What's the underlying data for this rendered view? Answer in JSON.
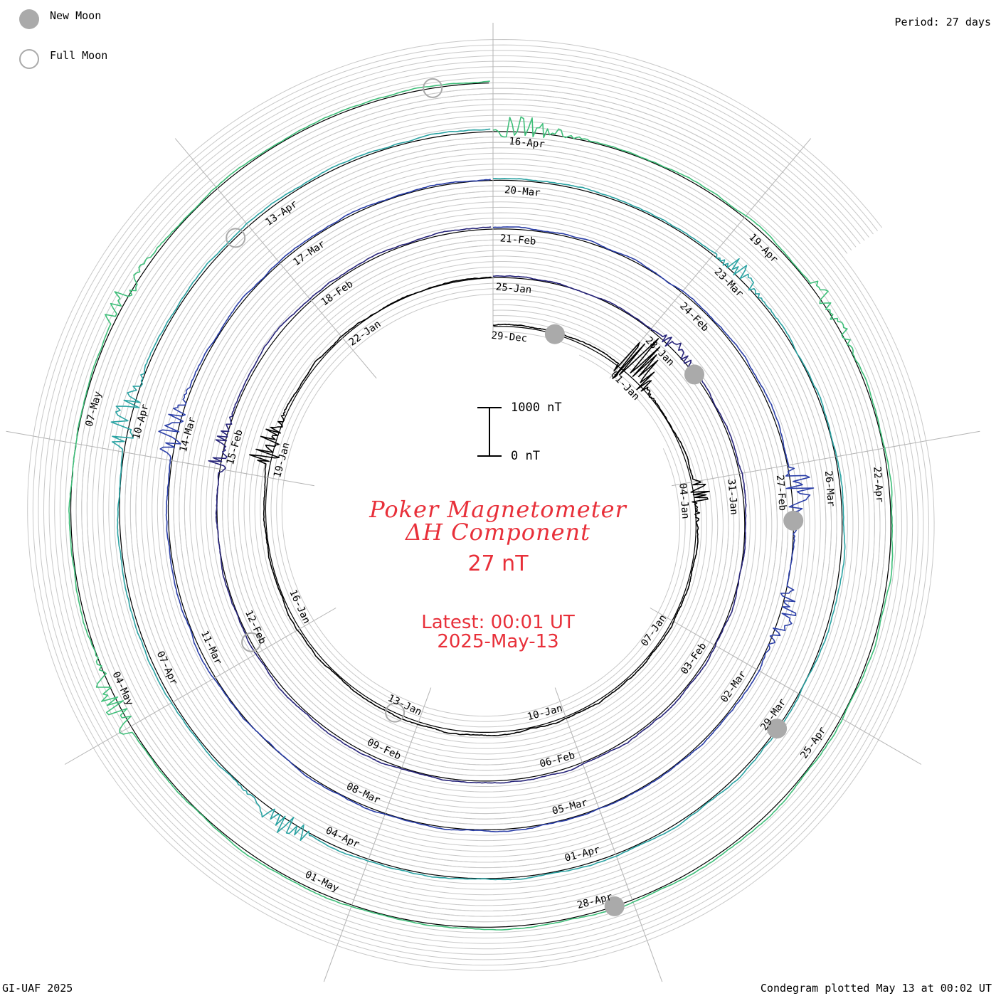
{
  "legend": {
    "new_moon_label": "New Moon",
    "full_moon_label": "Full Moon",
    "moon_color": "#aaaaaa"
  },
  "header": {
    "period_label": "Period: 27 days"
  },
  "footer": {
    "credit": "GI-UAF 2025",
    "plotted": "Condegram plotted May 13 at 00:02 UT"
  },
  "center": {
    "title_line1": "Poker Magnetometer",
    "title_line2": "ΔH Component",
    "scale_label": "27 nT",
    "latest_time": "Latest: 00:01 UT",
    "latest_date": "2025-May-13",
    "text_color": "#e8303a"
  },
  "scale_bar": {
    "top_label": "1000 nT",
    "bottom_label": "0 nT",
    "top_value_nT": 1000,
    "bottom_value_nT": 0
  },
  "chart_data": {
    "type": "line",
    "title": "Poker Magnetometer ΔH Component",
    "projection": "polar spiral (condegram), clockwise from top",
    "period_days": 27,
    "start_date": "2024-12-29",
    "end_date": "2025-05-13",
    "data_end": "2025-05-13 00:01 UT",
    "units": "nT",
    "grid": true,
    "date_labels": [
      {
        "text": "29-Dec",
        "day": 0
      },
      {
        "text": "01-Jan",
        "day": 3
      },
      {
        "text": "04-Jan",
        "day": 6
      },
      {
        "text": "07-Jan",
        "day": 9
      },
      {
        "text": "10-Jan",
        "day": 12
      },
      {
        "text": "13-Jan",
        "day": 15
      },
      {
        "text": "16-Jan",
        "day": 18
      },
      {
        "text": "19-Jan",
        "day": 21
      },
      {
        "text": "22-Jan",
        "day": 24
      },
      {
        "text": "25-Jan",
        "day": 27
      },
      {
        "text": "28-Jan",
        "day": 30
      },
      {
        "text": "31-Jan",
        "day": 33
      },
      {
        "text": "03-Feb",
        "day": 36
      },
      {
        "text": "06-Feb",
        "day": 39
      },
      {
        "text": "09-Feb",
        "day": 42
      },
      {
        "text": "12-Feb",
        "day": 45
      },
      {
        "text": "15-Feb",
        "day": 48
      },
      {
        "text": "18-Feb",
        "day": 51
      },
      {
        "text": "21-Feb",
        "day": 54
      },
      {
        "text": "24-Feb",
        "day": 57
      },
      {
        "text": "27-Feb",
        "day": 60
      },
      {
        "text": "02-Mar",
        "day": 63
      },
      {
        "text": "05-Mar",
        "day": 66
      },
      {
        "text": "08-Mar",
        "day": 69
      },
      {
        "text": "11-Mar",
        "day": 72
      },
      {
        "text": "14-Mar",
        "day": 75
      },
      {
        "text": "17-Mar",
        "day": 78
      },
      {
        "text": "20-Mar",
        "day": 81
      },
      {
        "text": "23-Mar",
        "day": 84
      },
      {
        "text": "26-Mar",
        "day": 87
      },
      {
        "text": "29-Mar",
        "day": 90
      },
      {
        "text": "01-Apr",
        "day": 93
      },
      {
        "text": "04-Apr",
        "day": 96
      },
      {
        "text": "07-Apr",
        "day": 99
      },
      {
        "text": "10-Apr",
        "day": 102
      },
      {
        "text": "13-Apr",
        "day": 105
      },
      {
        "text": "16-Apr",
        "day": 108
      },
      {
        "text": "19-Apr",
        "day": 111
      },
      {
        "text": "22-Apr",
        "day": 114
      },
      {
        "text": "25-Apr",
        "day": 117
      },
      {
        "text": "28-Apr",
        "day": 120
      },
      {
        "text": "01-May",
        "day": 123
      },
      {
        "text": "04-May",
        "day": 126
      },
      {
        "text": "07-May",
        "day": 129
      }
    ],
    "new_moons": [
      {
        "date": "2024-12-30",
        "day": 1.4
      },
      {
        "date": "2025-01-29",
        "day": 31.1
      },
      {
        "date": "2025-02-28",
        "day": 60.8
      },
      {
        "date": "2025-03-29",
        "day": 90.5
      },
      {
        "date": "2025-04-27",
        "day": 120.2
      }
    ],
    "full_moons": [
      {
        "date": "2025-01-13",
        "day": 15.5
      },
      {
        "date": "2025-02-12",
        "day": 45.2
      },
      {
        "date": "2025-04-13",
        "day": 104.8
      },
      {
        "date": "2025-05-12",
        "day": 134.4
      }
    ],
    "activity_events": [
      {
        "date": "2025-01-01",
        "day": 3.2,
        "peak_nT": 1100
      },
      {
        "date": "2025-01-04",
        "day": 6.2,
        "peak_nT": 400
      },
      {
        "date": "2025-01-19",
        "day": 21.5,
        "peak_nT": 550
      },
      {
        "date": "2025-01-28",
        "day": 30.5,
        "peak_nT": 250
      },
      {
        "date": "2025-02-15",
        "day": 48.2,
        "peak_nT": 400
      },
      {
        "date": "2025-02-27",
        "day": 60.3,
        "peak_nT": 500
      },
      {
        "date": "2025-03-01",
        "day": 62.0,
        "peak_nT": 450
      },
      {
        "date": "2025-03-14",
        "day": 75.3,
        "peak_nT": 450
      },
      {
        "date": "2025-03-23",
        "day": 84.3,
        "peak_nT": 300
      },
      {
        "date": "2025-04-05",
        "day": 97.0,
        "peak_nT": 400
      },
      {
        "date": "2025-04-10",
        "day": 102.3,
        "peak_nT": 450
      },
      {
        "date": "2025-04-16",
        "day": 108.3,
        "peak_nT": 400
      },
      {
        "date": "2025-04-20",
        "day": 112.3,
        "peak_nT": 300
      },
      {
        "date": "2025-05-04",
        "day": 126.2,
        "peak_nT": 450
      },
      {
        "date": "2025-05-08",
        "day": 130.5,
        "peak_nT": 350
      }
    ],
    "series_colors": [
      "#000000",
      "#27247a",
      "#2b3fa8",
      "#2aa3a3",
      "#3fbf7a",
      "#7dc23b",
      "#b7a417",
      "#c27a10",
      "#bf3a10",
      "#b31414"
    ]
  }
}
